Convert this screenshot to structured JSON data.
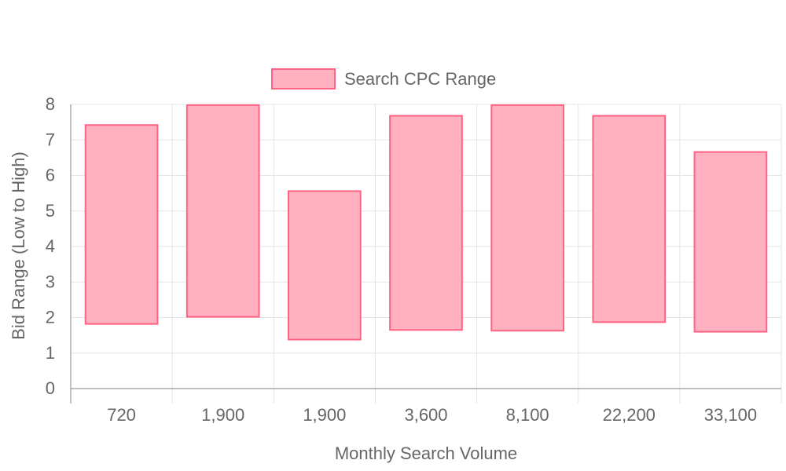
{
  "chart_data": {
    "type": "bar",
    "floating": true,
    "title": "",
    "xlabel": "Monthly Search Volume",
    "ylabel": "Bid Range (Low to High)",
    "categories": [
      "720",
      "1,900",
      "1,900",
      "3,600",
      "8,100",
      "22,200",
      "33,100"
    ],
    "series": [
      {
        "name": "Search CPC Range",
        "values": [
          [
            1.82,
            7.42
          ],
          [
            2.02,
            7.98
          ],
          [
            1.38,
            5.56
          ],
          [
            1.65,
            7.68
          ],
          [
            1.63,
            7.98
          ],
          [
            1.87,
            7.68
          ],
          [
            1.6,
            6.66
          ]
        ]
      }
    ],
    "ylim": [
      0,
      8
    ],
    "yticks": [
      "0",
      "1",
      "2",
      "3",
      "4",
      "5",
      "6",
      "7",
      "8"
    ],
    "grid": true,
    "legend_position": "top-center",
    "colors": {
      "bar_fill": "#ffb1c1",
      "bar_border": "#ff6384",
      "grid": "#e5e5e5",
      "axis": "#999999",
      "text": "#666666"
    }
  }
}
